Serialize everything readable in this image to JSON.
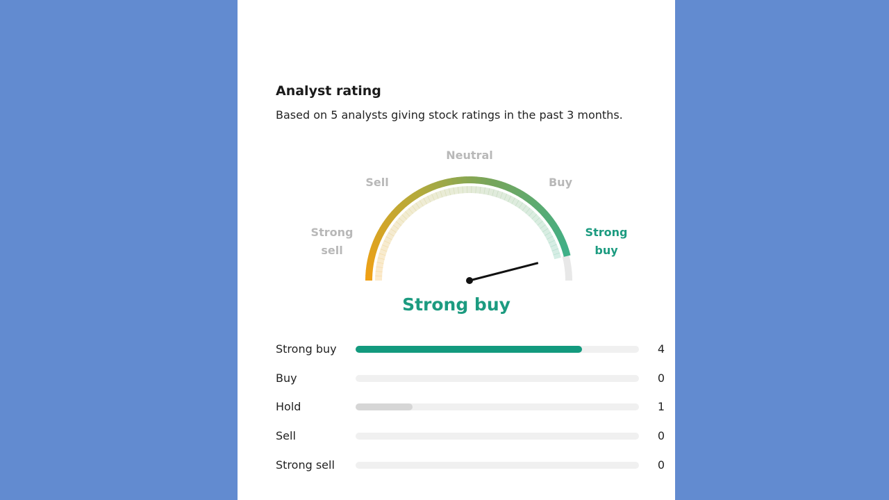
{
  "title": "Analyst rating",
  "subtitle": "Based on 5 analysts giving stock ratings in the past 3 months.",
  "gauge": {
    "labels": {
      "strong_sell": [
        "Strong",
        "sell"
      ],
      "sell": "Sell",
      "neutral": "Neutral",
      "buy": "Buy",
      "strong_buy": [
        "Strong",
        "buy"
      ]
    },
    "score_fraction": 0.92,
    "verdict": "Strong buy"
  },
  "breakdown": {
    "total": 5,
    "rows": [
      {
        "label": "Strong buy",
        "count": "4",
        "value": 4,
        "color": "#139a7e"
      },
      {
        "label": "Buy",
        "count": "0",
        "value": 0,
        "color": "#d6d6d6"
      },
      {
        "label": "Hold",
        "count": "1",
        "value": 1,
        "color": "#d6d6d6"
      },
      {
        "label": "Sell",
        "count": "0",
        "value": 0,
        "color": "#d6d6d6"
      },
      {
        "label": "Strong sell",
        "count": "0",
        "value": 0,
        "color": "#d6d6d6"
      }
    ]
  },
  "colors": {
    "accent": "#1c9b80",
    "background": "#628bd0"
  }
}
